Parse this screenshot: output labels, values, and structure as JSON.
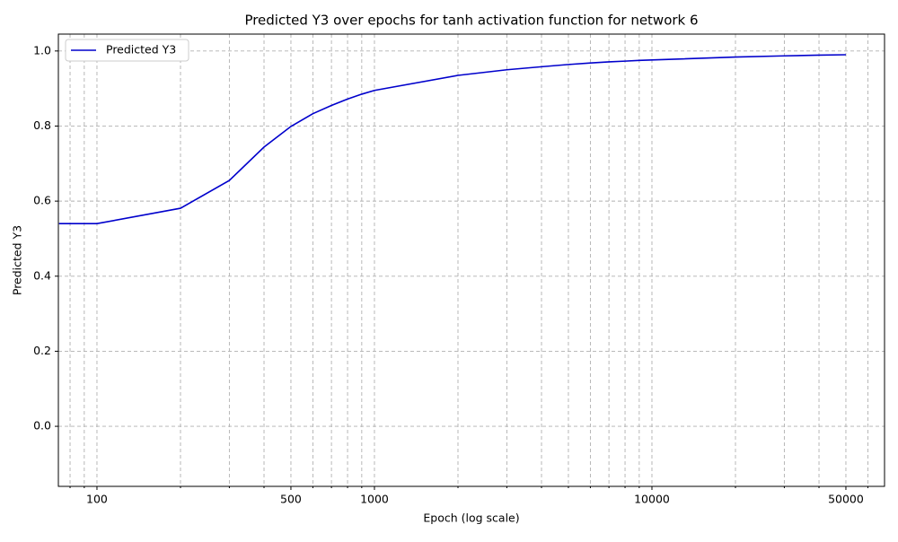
{
  "chart_data": {
    "type": "line",
    "title": "Predicted Y3 over epochs for tanh activation function for network 6",
    "x_label": "Epoch (log scale)",
    "y_label": "Predicted Y3",
    "x": [
      73,
      100,
      200,
      300,
      400,
      500,
      600,
      700,
      800,
      900,
      1000,
      2000,
      3000,
      4000,
      5000,
      6000,
      7000,
      8000,
      9000,
      10000,
      20000,
      30000,
      40000,
      50000
    ],
    "series": [
      {
        "name": "Predicted Y3",
        "color": "#0000cc",
        "values": [
          0.54,
          0.54,
          0.581,
          0.655,
          0.744,
          0.799,
          0.833,
          0.855,
          0.872,
          0.885,
          0.895,
          0.935,
          0.95,
          0.958,
          0.964,
          0.968,
          0.971,
          0.973,
          0.975,
          0.976,
          0.984,
          0.987,
          0.989,
          0.99
        ]
      }
    ],
    "x_log_scale": true,
    "xlim": [
      72.6,
      68900
    ],
    "xticks": [
      100,
      500,
      1000,
      10000,
      50000
    ],
    "xminor_ticks": [
      80,
      90,
      200,
      300,
      400,
      600,
      700,
      800,
      900,
      2000,
      3000,
      4000,
      5000,
      6000,
      7000,
      8000,
      9000,
      20000,
      30000,
      40000,
      60000
    ],
    "ylim": [
      -0.16,
      1.045
    ],
    "yticks": [
      {
        "value": 0,
        "label": "0.0"
      },
      0.2,
      0.4,
      0.6,
      0.8,
      {
        "value": 1,
        "label": "1.0"
      }
    ],
    "grid": true,
    "legend_position": "upper-left"
  }
}
